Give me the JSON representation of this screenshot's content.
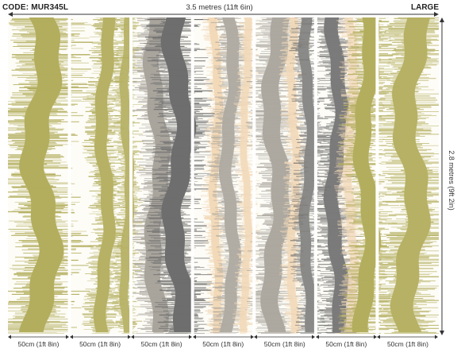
{
  "header": {
    "code": "CODE: MUR345L",
    "width_dimension": "3.5 metres (11ft 6in)",
    "size": "LARGE"
  },
  "side": {
    "height_dimension": "2.8 metres (9ft 2in)"
  },
  "colors": {
    "background": "#fdfcf6",
    "olive": "#b3ae5e",
    "grey_dark": "#6e6e6e",
    "grey_light": "#a9a59d",
    "peach": "#f2d9b8",
    "white": "#ffffff"
  },
  "panels": [
    {
      "caption": "50cm (1ft 8in)"
    },
    {
      "caption": "50cm (1ft 8in)"
    },
    {
      "caption": "50cm (1ft 8in)"
    },
    {
      "caption": "50cm (1ft 8in)"
    },
    {
      "caption": "50cm (1ft 8in)"
    },
    {
      "caption": "50cm (1ft 8in)"
    },
    {
      "caption": "50cm (1ft 8in)"
    }
  ]
}
